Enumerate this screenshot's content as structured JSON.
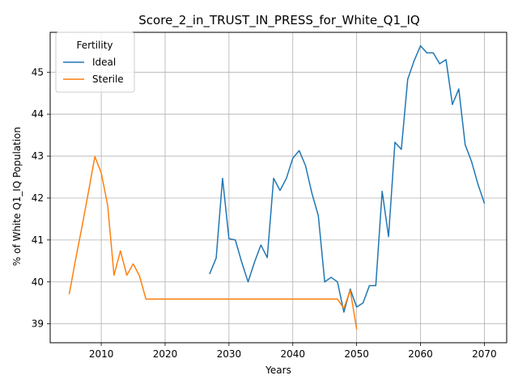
{
  "chart_data": {
    "type": "line",
    "title": "Score_2_in_TRUST_IN_PRESS_for_White_Q1_IQ",
    "xlabel": "Years",
    "ylabel": "% of White Q1_IQ Population",
    "xlim": [
      2002,
      2073.5
    ],
    "ylim": [
      38.55,
      45.95
    ],
    "xticks": [
      2010,
      2020,
      2030,
      2040,
      2050,
      2060,
      2070
    ],
    "yticks": [
      39,
      40,
      41,
      42,
      43,
      44,
      45
    ],
    "grid": true,
    "legend": {
      "title": "Fertility",
      "position": "top-left"
    },
    "series": [
      {
        "name": "Ideal",
        "color": "#1f77b4",
        "x": [
          2027,
          2028,
          2029,
          2030,
          2031,
          2032,
          2033,
          2034,
          2035,
          2036,
          2037,
          2038,
          2039,
          2040,
          2041,
          2042,
          2043,
          2044,
          2045,
          2046,
          2047,
          2048,
          2049,
          2050,
          2051,
          2052,
          2053,
          2054,
          2055,
          2056,
          2057,
          2058,
          2059,
          2060,
          2061,
          2062,
          2063,
          2064,
          2065,
          2066,
          2067,
          2068,
          2069,
          2070
        ],
        "values": [
          40.2,
          40.57,
          42.47,
          41.03,
          41.0,
          40.47,
          40.0,
          40.47,
          40.88,
          40.58,
          42.47,
          42.18,
          42.47,
          42.95,
          43.13,
          42.77,
          42.11,
          41.58,
          40.0,
          40.11,
          40.0,
          39.28,
          39.83,
          39.4,
          39.5,
          39.91,
          39.91,
          42.16,
          41.08,
          43.33,
          43.16,
          44.83,
          45.27,
          45.63,
          45.46,
          45.46,
          45.2,
          45.3,
          44.23,
          44.6,
          43.27,
          42.87,
          42.33,
          41.88
        ]
      },
      {
        "name": "Sterile",
        "color": "#ff7f0e",
        "x": [
          2005,
          2006,
          2007,
          2008,
          2009,
          2010,
          2011,
          2012,
          2013,
          2014,
          2015,
          2016,
          2017,
          2018,
          2019,
          2020,
          2021,
          2022,
          2023,
          2024,
          2025,
          2026,
          2027,
          2028,
          2029,
          2030,
          2031,
          2032,
          2033,
          2034,
          2035,
          2036,
          2037,
          2038,
          2039,
          2040,
          2041,
          2042,
          2043,
          2044,
          2045,
          2046,
          2047,
          2048,
          2049,
          2050
        ],
        "values": [
          39.72,
          40.55,
          41.33,
          42.15,
          42.99,
          42.6,
          41.83,
          40.16,
          40.74,
          40.16,
          40.43,
          40.14,
          39.59,
          39.59,
          39.59,
          39.59,
          39.59,
          39.59,
          39.59,
          39.59,
          39.59,
          39.59,
          39.59,
          39.59,
          39.59,
          39.59,
          39.59,
          39.59,
          39.59,
          39.59,
          39.59,
          39.59,
          39.59,
          39.59,
          39.59,
          39.59,
          39.59,
          39.59,
          39.59,
          39.59,
          39.59,
          39.59,
          39.59,
          39.37,
          39.8,
          38.88
        ]
      }
    ]
  }
}
